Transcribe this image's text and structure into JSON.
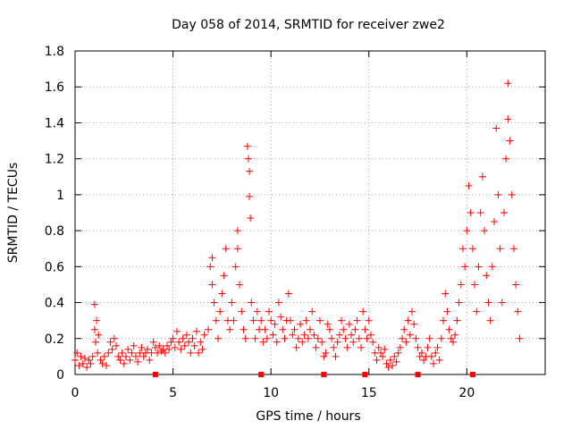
{
  "chart_data": {
    "type": "scatter",
    "title": "Day 058 of 2014, SRMTID for receiver zwe2",
    "xlabel": "GPS time / hours",
    "ylabel": "SRMTID / TECUs",
    "xlim": [
      0,
      24
    ],
    "ylim": [
      0,
      1.8
    ],
    "x_ticks": [
      0,
      5,
      10,
      15,
      20
    ],
    "y_ticks": [
      0,
      0.2,
      0.4,
      0.6,
      0.8,
      1,
      1.2,
      1.4,
      1.6,
      1.8
    ],
    "x_tick_labels": [
      "0",
      "5",
      "10",
      "15",
      "20"
    ],
    "y_tick_labels": [
      "0",
      "0.2",
      "0.4",
      "0.6",
      "0.8",
      "1",
      "1.2",
      "1.4",
      "1.6",
      "1.8"
    ],
    "grid": true,
    "marker": "+",
    "color": "#ff0000",
    "series": [
      {
        "name": "SRMTID",
        "points": [
          [
            0.0,
            0.08
          ],
          [
            0.1,
            0.12
          ],
          [
            0.2,
            0.05
          ],
          [
            0.3,
            0.1
          ],
          [
            0.4,
            0.06
          ],
          [
            0.5,
            0.09
          ],
          [
            0.6,
            0.04
          ],
          [
            0.7,
            0.08
          ],
          [
            0.8,
            0.06
          ],
          [
            0.9,
            0.1
          ],
          [
            1.0,
            0.39
          ],
          [
            1.0,
            0.25
          ],
          [
            1.05,
            0.18
          ],
          [
            1.1,
            0.3
          ],
          [
            1.15,
            0.12
          ],
          [
            1.2,
            0.22
          ],
          [
            1.3,
            0.08
          ],
          [
            1.4,
            0.06
          ],
          [
            1.5,
            0.1
          ],
          [
            1.6,
            0.05
          ],
          [
            1.7,
            0.12
          ],
          [
            1.8,
            0.18
          ],
          [
            1.9,
            0.14
          ],
          [
            2.0,
            0.2
          ],
          [
            2.1,
            0.16
          ],
          [
            2.2,
            0.1
          ],
          [
            2.3,
            0.08
          ],
          [
            2.4,
            0.12
          ],
          [
            2.5,
            0.06
          ],
          [
            2.6,
            0.1
          ],
          [
            2.7,
            0.14
          ],
          [
            2.8,
            0.08
          ],
          [
            2.9,
            0.12
          ],
          [
            3.0,
            0.16
          ],
          [
            3.1,
            0.1
          ],
          [
            3.2,
            0.07
          ],
          [
            3.3,
            0.12
          ],
          [
            3.4,
            0.15
          ],
          [
            3.5,
            0.1
          ],
          [
            3.6,
            0.12
          ],
          [
            3.7,
            0.14
          ],
          [
            3.8,
            0.08
          ],
          [
            3.9,
            0.12
          ],
          [
            4.0,
            0.18
          ],
          [
            4.1,
            0.15
          ],
          [
            4.2,
            0.12
          ],
          [
            4.3,
            0.16
          ],
          [
            4.4,
            0.13
          ],
          [
            4.5,
            0.14
          ],
          [
            4.6,
            0.12
          ],
          [
            4.7,
            0.16
          ],
          [
            4.8,
            0.14
          ],
          [
            4.9,
            0.18
          ],
          [
            5.0,
            0.2
          ],
          [
            5.1,
            0.15
          ],
          [
            5.2,
            0.24
          ],
          [
            5.3,
            0.18
          ],
          [
            5.4,
            0.14
          ],
          [
            5.5,
            0.2
          ],
          [
            5.6,
            0.16
          ],
          [
            5.7,
            0.22
          ],
          [
            5.8,
            0.18
          ],
          [
            5.9,
            0.12
          ],
          [
            6.0,
            0.2
          ],
          [
            6.1,
            0.16
          ],
          [
            6.2,
            0.24
          ],
          [
            6.3,
            0.12
          ],
          [
            6.4,
            0.18
          ],
          [
            6.5,
            0.14
          ],
          [
            6.6,
            0.22
          ],
          [
            6.8,
            0.25
          ],
          [
            6.9,
            0.6
          ],
          [
            7.0,
            0.65
          ],
          [
            7.0,
            0.5
          ],
          [
            7.1,
            0.4
          ],
          [
            7.2,
            0.3
          ],
          [
            7.3,
            0.2
          ],
          [
            7.4,
            0.35
          ],
          [
            7.5,
            0.45
          ],
          [
            7.6,
            0.55
          ],
          [
            7.7,
            0.7
          ],
          [
            7.8,
            0.3
          ],
          [
            7.9,
            0.25
          ],
          [
            8.0,
            0.4
          ],
          [
            8.1,
            0.3
          ],
          [
            8.2,
            0.6
          ],
          [
            8.3,
            0.8
          ],
          [
            8.3,
            0.7
          ],
          [
            8.4,
            0.5
          ],
          [
            8.5,
            0.35
          ],
          [
            8.6,
            0.25
          ],
          [
            8.7,
            0.2
          ],
          [
            8.8,
            1.27
          ],
          [
            8.85,
            1.2
          ],
          [
            8.9,
            1.13
          ],
          [
            8.9,
            0.99
          ],
          [
            8.95,
            0.87
          ],
          [
            9.0,
            0.4
          ],
          [
            9.1,
            0.3
          ],
          [
            9.2,
            0.2
          ],
          [
            9.3,
            0.35
          ],
          [
            9.4,
            0.25
          ],
          [
            9.5,
            0.3
          ],
          [
            9.6,
            0.18
          ],
          [
            9.7,
            0.25
          ],
          [
            9.8,
            0.2
          ],
          [
            9.9,
            0.35
          ],
          [
            10.0,
            0.3
          ],
          [
            10.1,
            0.22
          ],
          [
            10.2,
            0.28
          ],
          [
            10.3,
            0.18
          ],
          [
            10.4,
            0.4
          ],
          [
            10.5,
            0.32
          ],
          [
            10.6,
            0.25
          ],
          [
            10.7,
            0.2
          ],
          [
            10.8,
            0.3
          ],
          [
            10.9,
            0.45
          ],
          [
            11.0,
            0.3
          ],
          [
            11.1,
            0.22
          ],
          [
            11.2,
            0.25
          ],
          [
            11.3,
            0.15
          ],
          [
            11.4,
            0.2
          ],
          [
            11.5,
            0.28
          ],
          [
            11.6,
            0.18
          ],
          [
            11.7,
            0.22
          ],
          [
            11.8,
            0.3
          ],
          [
            11.9,
            0.2
          ],
          [
            12.0,
            0.25
          ],
          [
            12.1,
            0.35
          ],
          [
            12.2,
            0.22
          ],
          [
            12.3,
            0.15
          ],
          [
            12.4,
            0.2
          ],
          [
            12.5,
            0.3
          ],
          [
            12.6,
            0.18
          ],
          [
            12.7,
            0.1
          ],
          [
            12.8,
            0.12
          ],
          [
            12.9,
            0.28
          ],
          [
            13.0,
            0.25
          ],
          [
            13.1,
            0.2
          ],
          [
            13.2,
            0.15
          ],
          [
            13.3,
            0.1
          ],
          [
            13.4,
            0.18
          ],
          [
            13.5,
            0.22
          ],
          [
            13.6,
            0.3
          ],
          [
            13.7,
            0.25
          ],
          [
            13.8,
            0.2
          ],
          [
            13.9,
            0.15
          ],
          [
            14.0,
            0.28
          ],
          [
            14.1,
            0.22
          ],
          [
            14.2,
            0.18
          ],
          [
            14.3,
            0.25
          ],
          [
            14.4,
            0.3
          ],
          [
            14.5,
            0.2
          ],
          [
            14.6,
            0.15
          ],
          [
            14.7,
            0.35
          ],
          [
            14.8,
            0.25
          ],
          [
            14.9,
            0.2
          ],
          [
            15.0,
            0.3
          ],
          [
            15.1,
            0.22
          ],
          [
            15.2,
            0.18
          ],
          [
            15.3,
            0.12
          ],
          [
            15.4,
            0.08
          ],
          [
            15.5,
            0.15
          ],
          [
            15.6,
            0.12
          ],
          [
            15.7,
            0.1
          ],
          [
            15.8,
            0.14
          ],
          [
            15.9,
            0.06
          ],
          [
            16.0,
            0.04
          ],
          [
            16.1,
            0.08
          ],
          [
            16.2,
            0.05
          ],
          [
            16.3,
            0.1
          ],
          [
            16.4,
            0.07
          ],
          [
            16.5,
            0.12
          ],
          [
            16.6,
            0.15
          ],
          [
            16.7,
            0.2
          ],
          [
            16.8,
            0.25
          ],
          [
            16.9,
            0.18
          ],
          [
            17.0,
            0.3
          ],
          [
            17.1,
            0.22
          ],
          [
            17.2,
            0.35
          ],
          [
            17.3,
            0.28
          ],
          [
            17.4,
            0.2
          ],
          [
            17.5,
            0.15
          ],
          [
            17.6,
            0.1
          ],
          [
            17.7,
            0.12
          ],
          [
            17.8,
            0.08
          ],
          [
            17.9,
            0.1
          ],
          [
            18.0,
            0.15
          ],
          [
            18.1,
            0.2
          ],
          [
            18.2,
            0.1
          ],
          [
            18.3,
            0.06
          ],
          [
            18.4,
            0.12
          ],
          [
            18.5,
            0.15
          ],
          [
            18.6,
            0.08
          ],
          [
            18.7,
            0.2
          ],
          [
            18.8,
            0.3
          ],
          [
            18.9,
            0.45
          ],
          [
            19.0,
            0.35
          ],
          [
            19.1,
            0.25
          ],
          [
            19.2,
            0.2
          ],
          [
            19.3,
            0.18
          ],
          [
            19.4,
            0.22
          ],
          [
            19.5,
            0.3
          ],
          [
            19.6,
            0.4
          ],
          [
            19.7,
            0.5
          ],
          [
            19.8,
            0.7
          ],
          [
            19.9,
            0.6
          ],
          [
            20.0,
            0.8
          ],
          [
            20.1,
            1.05
          ],
          [
            20.2,
            0.9
          ],
          [
            20.3,
            0.7
          ],
          [
            20.4,
            0.5
          ],
          [
            20.5,
            0.35
          ],
          [
            20.6,
            0.6
          ],
          [
            20.7,
            0.9
          ],
          [
            20.8,
            1.1
          ],
          [
            20.9,
            0.8
          ],
          [
            21.0,
            0.55
          ],
          [
            21.1,
            0.4
          ],
          [
            21.2,
            0.3
          ],
          [
            21.3,
            0.6
          ],
          [
            21.4,
            0.85
          ],
          [
            21.5,
            1.37
          ],
          [
            21.6,
            1.0
          ],
          [
            21.7,
            0.7
          ],
          [
            21.8,
            0.4
          ],
          [
            21.9,
            0.9
          ],
          [
            22.0,
            1.2
          ],
          [
            22.1,
            1.42
          ],
          [
            22.1,
            1.62
          ],
          [
            22.2,
            1.3
          ],
          [
            22.3,
            1.0
          ],
          [
            22.4,
            0.7
          ],
          [
            22.5,
            0.5
          ],
          [
            22.6,
            0.35
          ],
          [
            22.7,
            0.2
          ]
        ]
      }
    ],
    "bottom_markers_x": [
      4.1,
      9.5,
      12.7,
      14.8,
      17.5,
      20.3
    ]
  }
}
